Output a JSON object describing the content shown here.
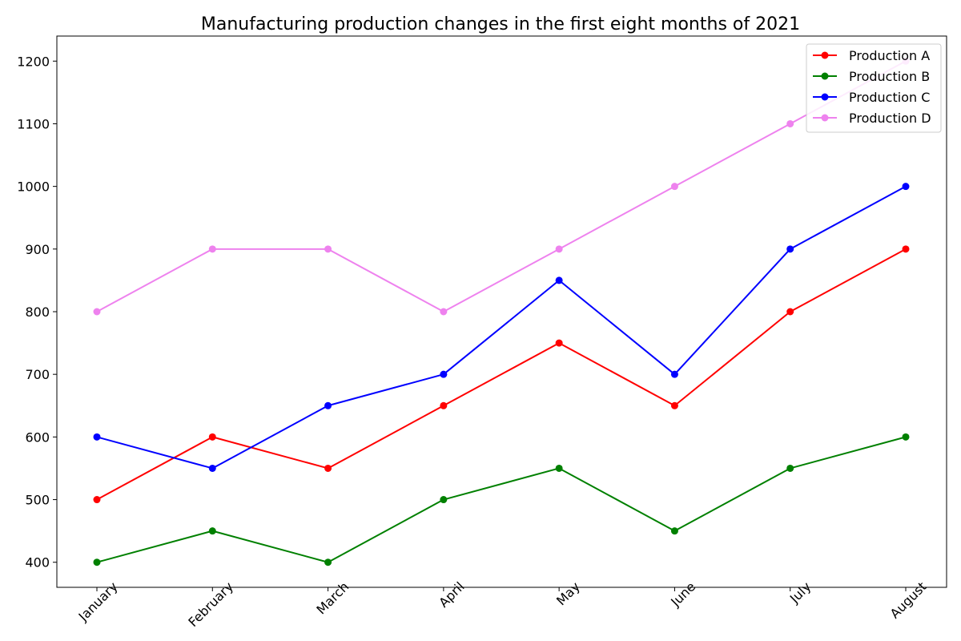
{
  "chart_data": {
    "type": "line",
    "title": "Manufacturing production changes in the first eight months of 2021",
    "xlabel": "",
    "ylabel": "",
    "categories": [
      "January",
      "February",
      "March",
      "April",
      "May",
      "June",
      "July",
      "August"
    ],
    "ylim": [
      360,
      1240
    ],
    "yticks": [
      400,
      500,
      600,
      700,
      800,
      900,
      1000,
      1100,
      1200
    ],
    "grid": false,
    "legend_position": "top-right",
    "series": [
      {
        "name": "Production A",
        "color": "#ff0000",
        "values": [
          500,
          600,
          550,
          650,
          750,
          650,
          800,
          900
        ]
      },
      {
        "name": "Production B",
        "color": "#008000",
        "values": [
          400,
          450,
          400,
          500,
          550,
          450,
          550,
          600
        ]
      },
      {
        "name": "Production C",
        "color": "#0000ff",
        "values": [
          600,
          550,
          650,
          700,
          850,
          700,
          900,
          1000
        ]
      },
      {
        "name": "Production D",
        "color": "#ee82ee",
        "values": [
          800,
          900,
          900,
          800,
          900,
          1000,
          1100,
          1200
        ]
      }
    ]
  }
}
